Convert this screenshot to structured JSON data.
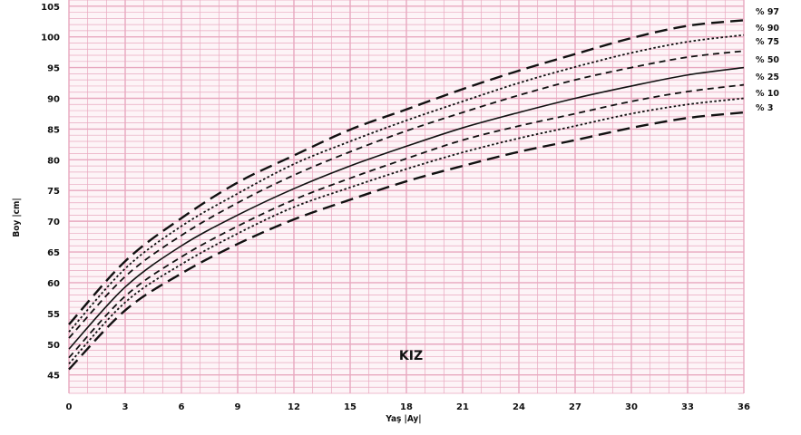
{
  "chart_data": {
    "type": "line",
    "xlabel": "Yaş |Ay|",
    "ylabel": "Boy |cm|",
    "annotation": "KIZ",
    "xlim": [
      0,
      36
    ],
    "ylim": [
      42,
      106
    ],
    "x_ticks": [
      0,
      3,
      6,
      9,
      12,
      15,
      18,
      21,
      24,
      27,
      30,
      33,
      36
    ],
    "y_ticks": [
      45,
      50,
      55,
      60,
      65,
      70,
      75,
      80,
      85,
      90,
      95,
      100,
      105
    ],
    "grid": true,
    "grid_color": "#e8a8bf",
    "line_color": "#111111",
    "x": [
      0,
      3,
      6,
      9,
      12,
      15,
      18,
      21,
      24,
      27,
      30,
      33,
      36
    ],
    "series": [
      {
        "name": "% 97",
        "style": "long-dash",
        "values": [
          53.2,
          63.5,
          70.5,
          76.3,
          80.7,
          84.9,
          88.2,
          91.5,
          94.5,
          97.2,
          99.8,
          101.8,
          102.7
        ]
      },
      {
        "name": "% 90",
        "style": "dotted",
        "values": [
          52.0,
          62.3,
          69.2,
          74.5,
          79.3,
          83.0,
          86.4,
          89.5,
          92.5,
          95.1,
          97.4,
          99.2,
          100.3
        ]
      },
      {
        "name": "% 75",
        "style": "dashed",
        "values": [
          51.0,
          61.0,
          67.7,
          73.0,
          77.5,
          81.3,
          84.7,
          87.7,
          90.5,
          93.0,
          95.0,
          96.7,
          97.7
        ]
      },
      {
        "name": "% 50",
        "style": "solid",
        "values": [
          49.2,
          59.3,
          66.0,
          71.0,
          75.3,
          79.0,
          82.2,
          85.2,
          87.7,
          90.0,
          92.0,
          93.8,
          95.0
        ]
      },
      {
        "name": "% 25",
        "style": "dashed",
        "values": [
          47.8,
          57.8,
          64.2,
          69.2,
          73.5,
          77.0,
          80.2,
          83.2,
          85.5,
          87.5,
          89.5,
          91.1,
          92.2
        ]
      },
      {
        "name": "% 10",
        "style": "dotted",
        "values": [
          46.8,
          56.8,
          63.0,
          68.0,
          72.3,
          75.5,
          78.5,
          81.2,
          83.5,
          85.5,
          87.5,
          89.0,
          90.0
        ]
      },
      {
        "name": "% 3",
        "style": "long-dash",
        "values": [
          45.9,
          55.5,
          61.5,
          66.3,
          70.3,
          73.5,
          76.5,
          79.0,
          81.3,
          83.2,
          85.2,
          86.8,
          87.7
        ]
      }
    ]
  }
}
